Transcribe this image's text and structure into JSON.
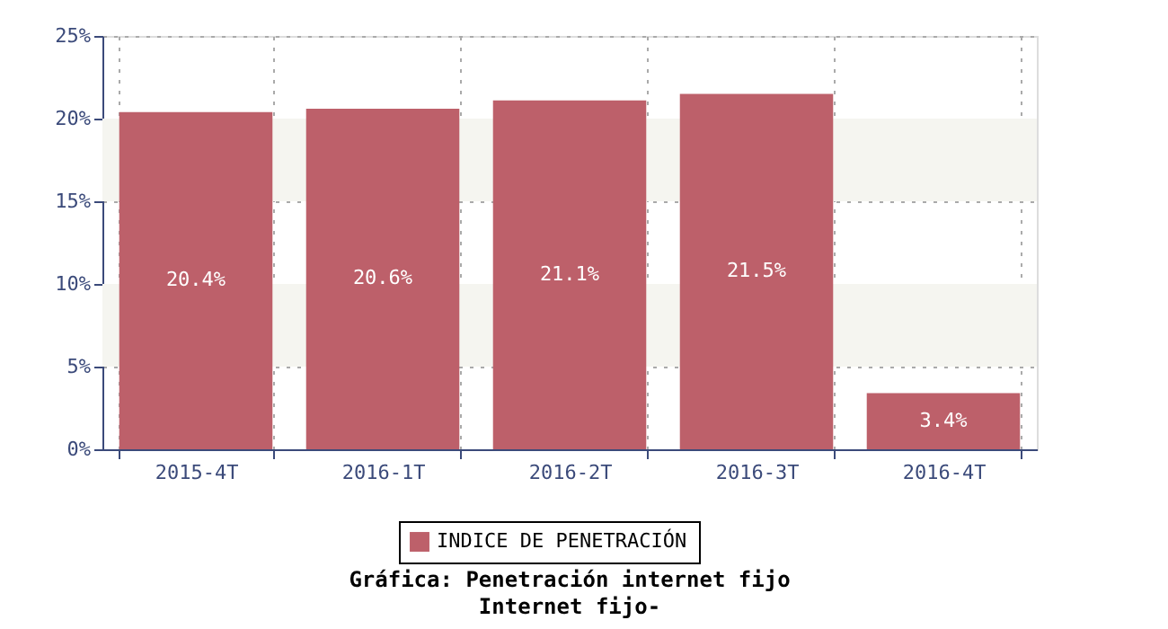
{
  "chart_data": {
    "type": "bar",
    "title": "Gráfica: Penetración internet fijo",
    "subtitle": "Internet fijo-",
    "categories": [
      "2015-4T",
      "2016-1T",
      "2016-2T",
      "2016-3T",
      "2016-4T"
    ],
    "series": [
      {
        "name": "INDICE DE PENETRACIÓN",
        "color": "#bd606a",
        "values": [
          20.4,
          20.6,
          21.1,
          21.5,
          3.4
        ],
        "value_labels": [
          "20.4%",
          "20.6%",
          "21.1%",
          "21.5%",
          "3.4%"
        ]
      }
    ],
    "ylim": [
      0,
      25
    ],
    "yticks": [
      {
        "value": 0,
        "label": "0%"
      },
      {
        "value": 5,
        "label": "5%"
      },
      {
        "value": 10,
        "label": "10%"
      },
      {
        "value": 15,
        "label": "15%"
      },
      {
        "value": 20,
        "label": "20%"
      },
      {
        "value": 25,
        "label": "25%"
      }
    ],
    "bands": [
      {
        "axis": "y",
        "from": 5,
        "to": 10,
        "color": "#f5f5f0"
      },
      {
        "axis": "y",
        "from": 15,
        "to": 20,
        "color": "#f5f5f0"
      }
    ],
    "grid": true,
    "legend": "bottom"
  }
}
